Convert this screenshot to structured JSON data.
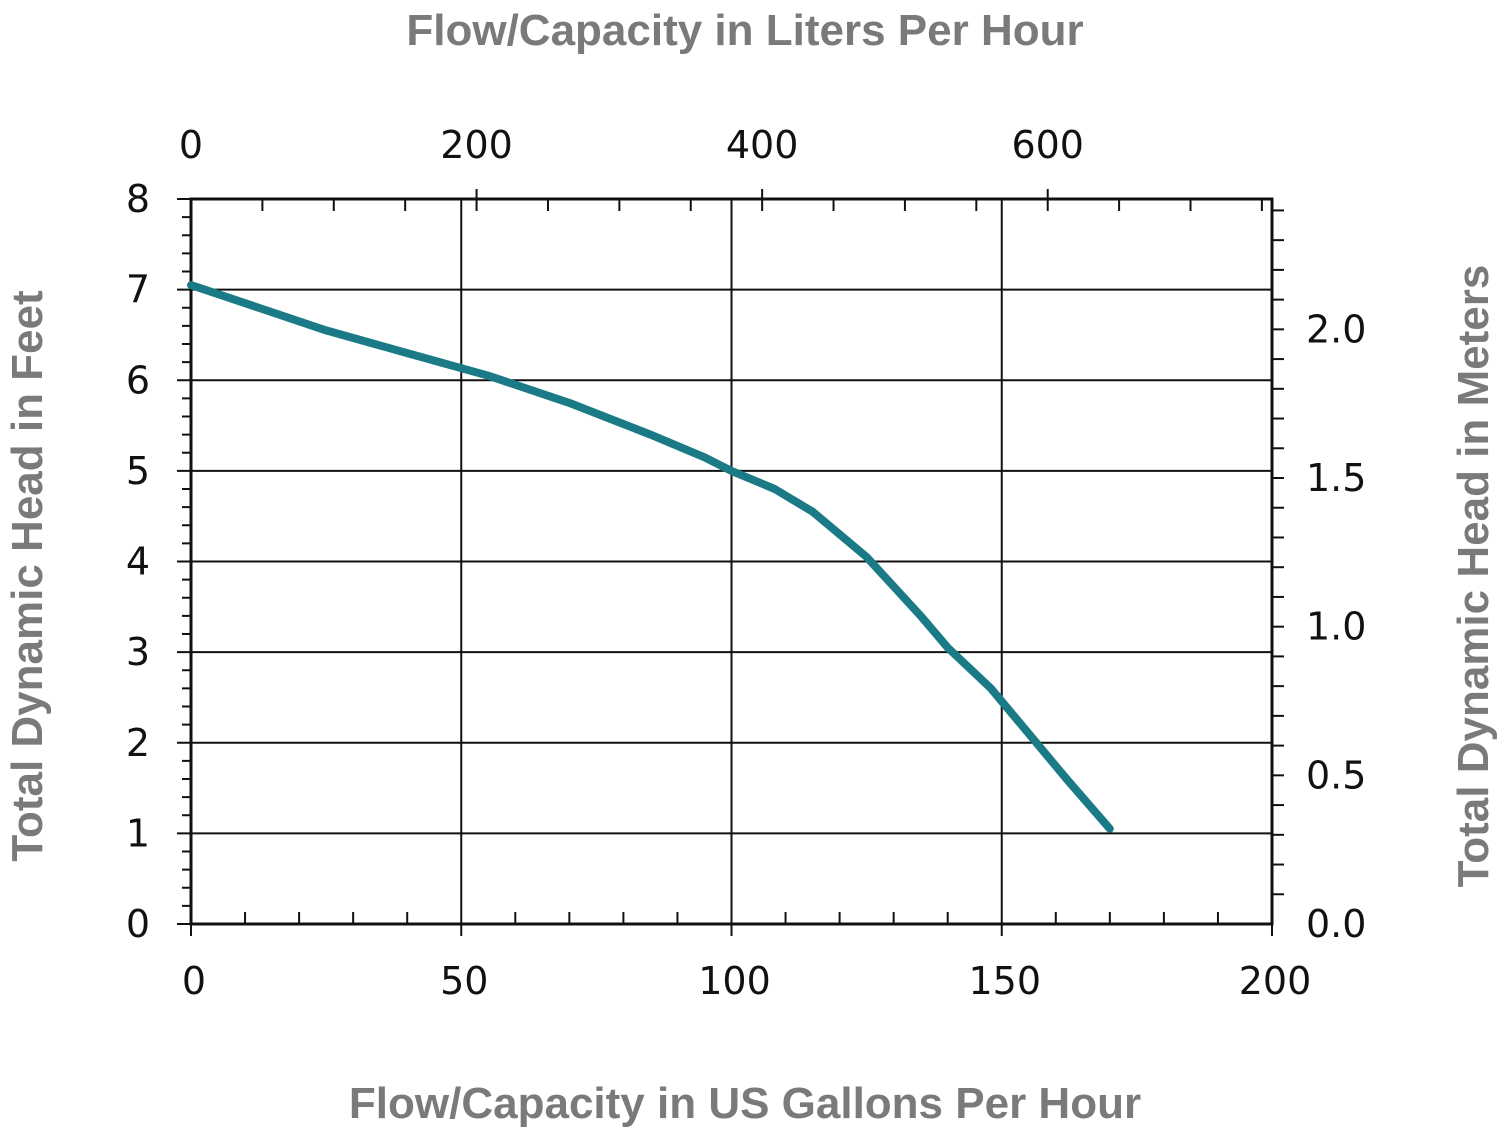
{
  "chart_data": {
    "type": "line",
    "x_bottom": {
      "label": "Flow/Capacity in US Gallons Per Hour",
      "range": [
        0,
        200
      ],
      "ticks": [
        0,
        50,
        100,
        150,
        200
      ],
      "tick_labels": [
        "0",
        "50",
        "100",
        "150",
        "200"
      ]
    },
    "x_top": {
      "label": "Flow/Capacity in Liters Per Hour",
      "ticks": [
        0,
        200,
        400,
        600
      ],
      "tick_labels": [
        "0",
        "200",
        "400",
        "600"
      ]
    },
    "y_left": {
      "label": "Total Dynamic Head in Feet",
      "range": [
        0,
        8
      ],
      "ticks": [
        0,
        1,
        2,
        3,
        4,
        5,
        6,
        7,
        8
      ],
      "tick_labels": [
        "0",
        "1",
        "2",
        "3",
        "4",
        "5",
        "6",
        "7",
        "8"
      ]
    },
    "y_right": {
      "label": "Total Dynamic Head in Meters",
      "ticks": [
        0.0,
        0.5,
        1.0,
        1.5,
        2.0
      ],
      "tick_labels": [
        "0.0",
        "0.5",
        "1.0",
        "1.5",
        "2.0"
      ]
    },
    "grid": true,
    "series": [
      {
        "color": "#1a7a86",
        "x": [
          0,
          10,
          25,
          40,
          55,
          70,
          85,
          95,
          100,
          108,
          115,
          120,
          125,
          135,
          140,
          148,
          155,
          162,
          170
        ],
        "y": [
          7.05,
          6.85,
          6.55,
          6.3,
          6.05,
          5.75,
          5.4,
          5.15,
          5.0,
          4.8,
          4.55,
          4.3,
          4.05,
          3.4,
          3.05,
          2.6,
          2.1,
          1.6,
          1.05
        ]
      }
    ]
  }
}
